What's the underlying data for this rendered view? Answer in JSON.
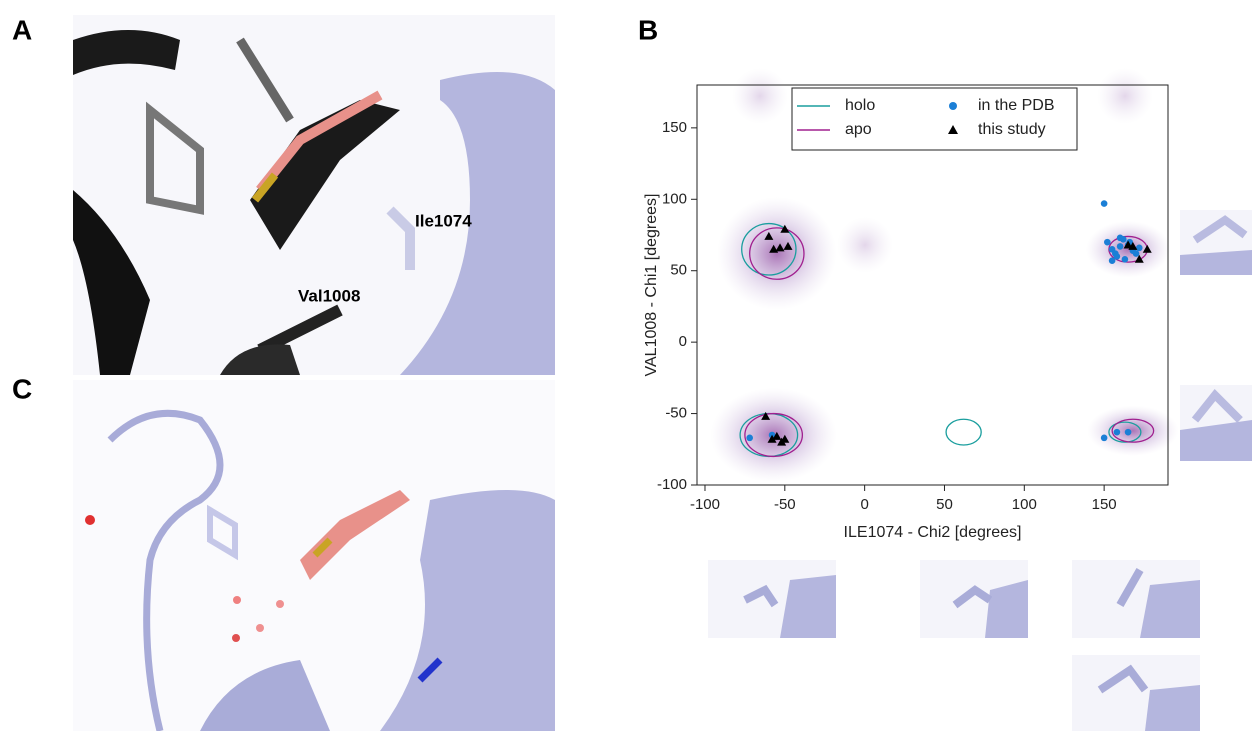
{
  "panels": {
    "a": "A",
    "b": "B",
    "c": "C"
  },
  "residue_labels": [
    "Ile1074",
    "Val1008"
  ],
  "chart_data": {
    "type": "scatter",
    "xlabel": "ILE1074 - Chi2 [degrees]",
    "ylabel": "VAL1008 - Chi1 [degrees]",
    "xlim": [
      -105,
      190
    ],
    "ylim": [
      -100,
      180
    ],
    "xticks": [
      -100,
      -50,
      0,
      50,
      100,
      150
    ],
    "yticks": [
      -100,
      -50,
      0,
      50,
      100,
      150
    ],
    "series": [
      {
        "name": "in the PDB",
        "color": "#1b7fd6",
        "marker": "circle",
        "x": [
          150,
          152,
          155,
          157,
          160,
          162,
          158,
          165,
          168,
          163,
          170,
          155,
          160,
          172,
          166,
          -72,
          -58,
          150,
          158,
          165
        ],
        "y": [
          97,
          70,
          65,
          62,
          67,
          72,
          60,
          68,
          64,
          58,
          62,
          57,
          73,
          66,
          70,
          -67,
          -65,
          -67,
          -63,
          -63
        ]
      },
      {
        "name": "this study",
        "color": "#000000",
        "marker": "triangle",
        "x": [
          -57,
          -50,
          -60,
          -53,
          -48,
          -62,
          -58,
          -55,
          -52,
          -50,
          165,
          172,
          177,
          168
        ],
        "y": [
          65,
          79,
          74,
          66,
          67,
          -52,
          -68,
          -66,
          -70,
          -68,
          68,
          58,
          65,
          67
        ]
      }
    ],
    "contours": [
      {
        "name": "holo",
        "color": "#1a9e9e",
        "ellipses": [
          {
            "cx": -60,
            "cy": 65,
            "rx": 17,
            "ry": 18
          },
          {
            "cx": -60,
            "cy": -65,
            "rx": 18,
            "ry": 15
          },
          {
            "cx": 62,
            "cy": -63,
            "rx": 11,
            "ry": 9
          },
          {
            "cx": 163,
            "cy": -63,
            "rx": 10,
            "ry": 7
          }
        ]
      },
      {
        "name": "apo",
        "color": "#a0208f",
        "ellipses": [
          {
            "cx": -55,
            "cy": 62,
            "rx": 17,
            "ry": 18
          },
          {
            "cx": -57,
            "cy": -65,
            "rx": 18,
            "ry": 15
          },
          {
            "cx": 165,
            "cy": 65,
            "rx": 12,
            "ry": 9
          },
          {
            "cx": 168,
            "cy": -62,
            "rx": 13,
            "ry": 8
          }
        ]
      }
    ]
  }
}
